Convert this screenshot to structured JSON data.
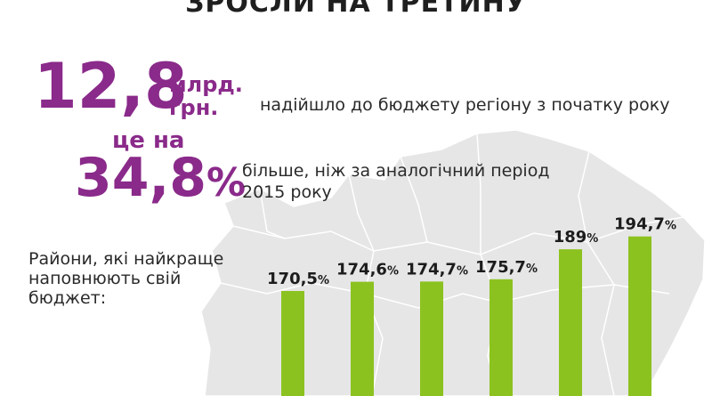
{
  "title": "ЗРОСЛИ НА ТРЕТИНУ",
  "headline": {
    "amount": "12,8",
    "unit_line1": "млрд.",
    "unit_line2": "грн.",
    "text": "надійшло до бюджету регіону з початку року"
  },
  "comparison": {
    "prefix_line": "це на",
    "percent": "34,8",
    "percent_sign": "%",
    "text_line1": "більше, ніж за аналогічний період",
    "text_line2": "2015 року"
  },
  "side_label": "Райони, які найкраще наповнюють свій бюджет:",
  "colors": {
    "accent": "#8a2a8a",
    "bar": "#8cc21f",
    "map": "#e6e6e6"
  },
  "chart_data": {
    "type": "bar",
    "title": "",
    "xlabel": "",
    "ylabel": "",
    "categories": [
      "",
      "",
      "",
      "",
      "",
      ""
    ],
    "values": [
      170.5,
      174.6,
      174.7,
      175.7,
      189,
      194.7
    ],
    "value_labels": [
      "170,5",
      "174,6",
      "174,7",
      "175,7",
      "189",
      "194,7"
    ],
    "unit": "%",
    "grid": false,
    "legend": "none"
  }
}
